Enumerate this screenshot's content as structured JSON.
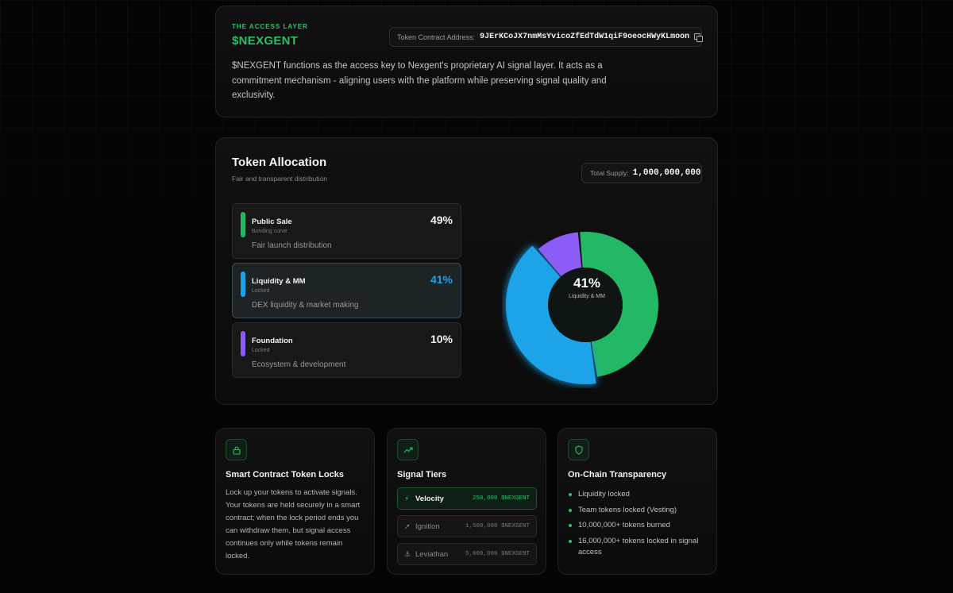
{
  "access": {
    "eyebrow": "THE ACCESS LAYER",
    "ticker": "$NEXGENT",
    "contract_label": "Token Contract Address:",
    "contract_address": "9JErKCoJX7nmMsYvicoZfEdTdW1qiF9oeocHWyKLmoon",
    "description": "$NEXGENT functions as the access key to Nexgent's proprietary AI signal layer. It acts as a commitment mechanism - aligning users with the platform while preserving signal quality and exclusivity."
  },
  "allocation": {
    "title": "Token Allocation",
    "subtitle": "Fair and transparent distribution",
    "supply_label": "Total Supply:",
    "supply_value": "1,000,000,000",
    "items": [
      {
        "name": "Public Sale",
        "tag": "Bonding curve",
        "desc": "Fair launch distribution",
        "pct": "49%",
        "color": "#22b865"
      },
      {
        "name": "Liquidity & MM",
        "tag": "Locked",
        "desc": "DEX liquidity & market making",
        "pct": "41%",
        "color": "#1aa3e8"
      },
      {
        "name": "Foundation",
        "tag": "Locked",
        "desc": "Ecosystem & development",
        "pct": "10%",
        "color": "#8b5cf6"
      }
    ],
    "center_pct": "41%",
    "center_label": "Liquidity & MM"
  },
  "chart_data": {
    "type": "pie",
    "categories": [
      "Public Sale",
      "Liquidity & MM",
      "Foundation"
    ],
    "values": [
      49,
      41,
      10
    ],
    "colors": [
      "#22b865",
      "#1aa3e8",
      "#8b5cf6"
    ],
    "highlighted": "Liquidity & MM"
  },
  "locks": {
    "icon": "lock-icon",
    "title": "Smart Contract Token Locks",
    "body": "Lock up your tokens to activate signals. Your tokens are held securely in a smart contract; when the lock period ends you can withdraw them, but signal access continues only while tokens remain locked."
  },
  "tiers": {
    "icon": "trending-up-icon",
    "title": "Signal Tiers",
    "items": [
      {
        "name": "Velocity",
        "amount": "250,000 $NEXGENT",
        "icon": "bolt-icon"
      },
      {
        "name": "Ignition",
        "amount": "1,500,000 $NEXGENT",
        "icon": "rocket-icon"
      },
      {
        "name": "Leviathan",
        "amount": "5,000,000 $NEXGENT",
        "icon": "anchor-icon"
      }
    ]
  },
  "transparency": {
    "icon": "shield-icon",
    "title": "On-Chain Transparency",
    "items": [
      "Liquidity locked",
      "Team tokens locked (Vesting)",
      "10,000,000+ tokens burned",
      "16,000,000+ tokens locked in signal access"
    ]
  },
  "colors": {
    "accent": "#22b865",
    "blue": "#1aa3e8",
    "purple": "#8b5cf6",
    "background": "#050505"
  }
}
